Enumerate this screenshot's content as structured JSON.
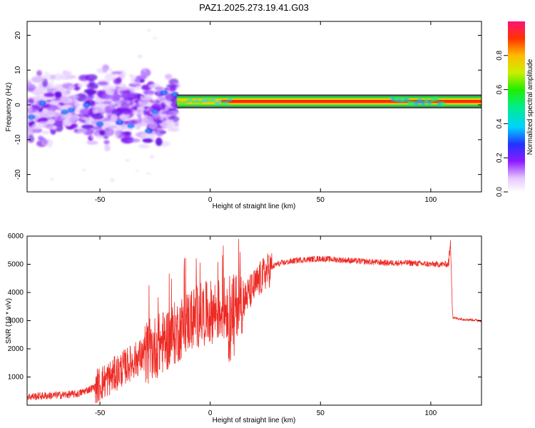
{
  "title": "PAZ1.2025.273.19.41.G03",
  "chart_data": [
    {
      "type": "heatmap",
      "title": "PAZ1.2025.273.19.41.G03",
      "xlabel": "Height of straight line (km)",
      "ylabel": "Frequency (Hz)",
      "xlim": [
        -83,
        123
      ],
      "ylim": [
        -25,
        24
      ],
      "xticks": [
        -50,
        0,
        50,
        100
      ],
      "yticks": [
        -20,
        -10,
        0,
        10,
        20
      ],
      "xtick_labels": [
        "-50",
        "0",
        "50",
        "100"
      ],
      "ytick_labels": [
        "-20",
        "-10",
        "0",
        "10",
        "20"
      ],
      "description_bands": {
        "scattered_region_km": [
          -83,
          -15
        ],
        "line_region_km": [
          -15,
          123
        ],
        "line_center_hz": 1
      },
      "colorbar": {
        "label": "Normalized spectral amplitude",
        "range": [
          0,
          1
        ],
        "ticks": [
          0.0,
          0.2,
          0.4,
          0.6,
          0.8
        ],
        "tick_labels": [
          "0.0",
          "0.2",
          "0.4",
          "0.6",
          "0.8"
        ]
      }
    },
    {
      "type": "line",
      "xlabel": "Height of straight line (km)",
      "ylabel": "SNR (10 * v/v)",
      "xlim": [
        -83,
        123
      ],
      "ylim": [
        0,
        6000
      ],
      "xticks": [
        -50,
        0,
        50,
        100
      ],
      "yticks": [
        1000,
        2000,
        3000,
        4000,
        5000,
        6000
      ],
      "xtick_labels": [
        "-50",
        "0",
        "50",
        "100"
      ],
      "ytick_labels": [
        "1000",
        "2000",
        "3000",
        "4000",
        "5000",
        "6000"
      ],
      "color": "#ee2a24",
      "series": [
        {
          "name": "SNR",
          "x": [
            -83,
            -70,
            -60,
            -52,
            -45,
            -38,
            -30,
            -22,
            -15,
            -10,
            -5,
            0,
            5,
            10,
            15,
            20,
            25,
            30,
            40,
            50,
            60,
            70,
            80,
            90,
            100,
            108,
            109,
            110,
            115,
            123
          ],
          "y": [
            300,
            350,
            400,
            650,
            1000,
            1400,
            1800,
            2200,
            2600,
            3000,
            3200,
            3300,
            3400,
            3500,
            3700,
            4200,
            4700,
            5000,
            5150,
            5200,
            5150,
            5100,
            5050,
            5050,
            5000,
            5000,
            5700,
            3100,
            3050,
            3000
          ]
        }
      ]
    }
  ]
}
